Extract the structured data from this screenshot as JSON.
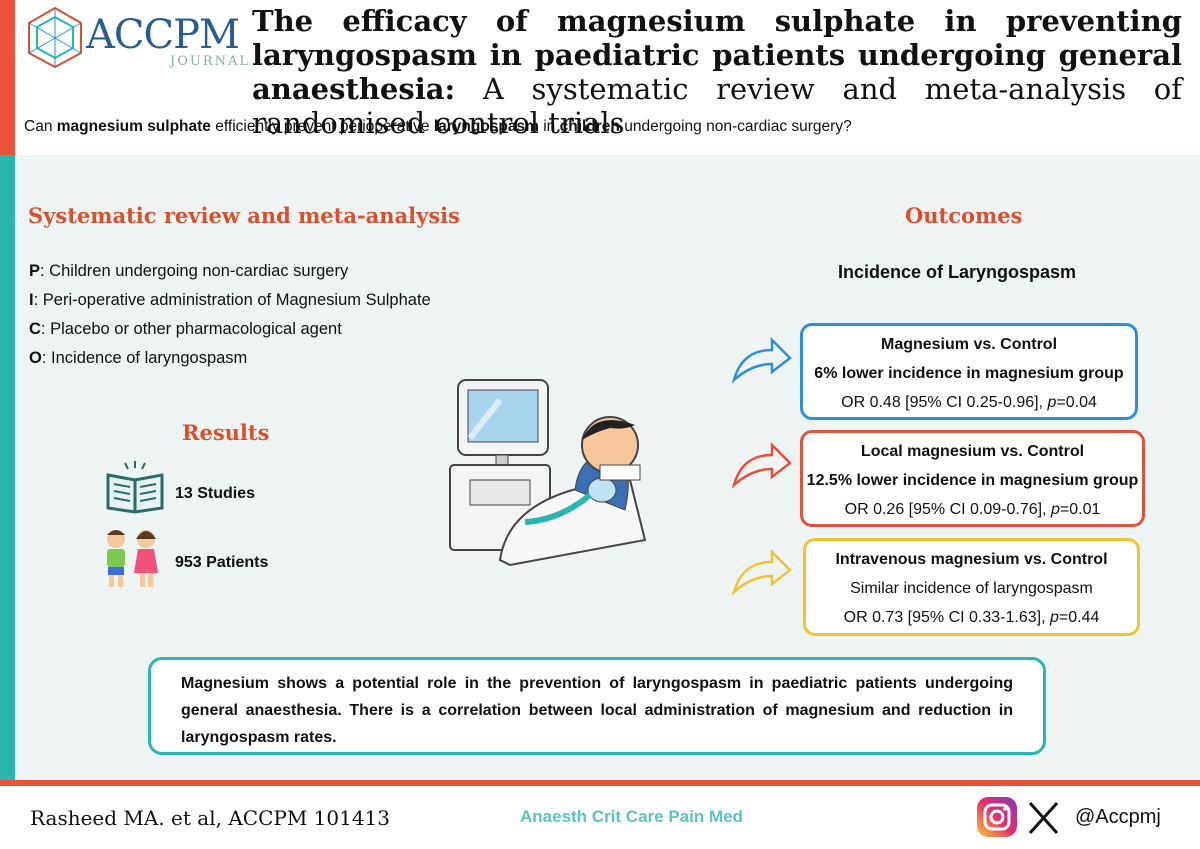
{
  "header": {
    "logo": "ACCPM",
    "logo_sub": "JOURNAL",
    "title_bold": "The efficacy of magnesium sulphate in preventing laryngospasm in paediatric patients undergoing general anaesthesia:",
    "title_rest": "A systematic review and meta-analysis of randomised control trials",
    "question": [
      "Can ",
      "magnesium sulphate",
      " efficiently prevent perioperative ",
      "laryngospasm",
      " in ",
      "children",
      " undergoing non-cardiac surgery?"
    ]
  },
  "review": {
    "heading": "Systematic review and meta-analysis",
    "pico": [
      {
        "letter": "P",
        "text": ": Children undergoing non-cardiac surgery"
      },
      {
        "letter": "I",
        "text": ": Peri-operative administration of Magnesium Sulphate"
      },
      {
        "letter": "C",
        "text": ": Placebo or other pharmacological agent"
      },
      {
        "letter": "O",
        "text": ": Incidence of laryngospasm"
      }
    ]
  },
  "results": {
    "heading": "Results",
    "stats": [
      "13 Studies",
      "953 Patients"
    ]
  },
  "outcomes": {
    "heading": "Outcomes",
    "subheading": "Incidence of Laryngospasm",
    "boxes": [
      {
        "title": "Magnesium vs. Control",
        "finding": "6% lower incidence in magnesium group",
        "stats": [
          "OR 0.48 [95% CI 0.25-0.96], ",
          "p",
          "=0.04"
        ]
      },
      {
        "title": "Local magnesium vs. Control",
        "finding": "12.5% lower incidence in magnesium group",
        "stats": [
          "OR 0.26 [95% CI 0.09-0.76], ",
          "p",
          "=0.01"
        ]
      },
      {
        "title": "Intravenous magnesium vs. Control",
        "finding": "Similar incidence of laryngospasm",
        "stats": [
          "OR 0.73 [95% CI 0.33-1.63], ",
          "p",
          "=0.44"
        ]
      }
    ]
  },
  "conclusion": "Magnesium shows a potential role in the prevention of laryngospasm in paediatric patients undergoing general anaesthesia. There is a correlation between local administration of magnesium and reduction in laryngospasm rates.",
  "footer": {
    "citation": "Rasheed MA. et al, ACCPM 101413",
    "journal": "Anaesth Crit Care Pain Med",
    "handle": "@Accpmj"
  }
}
